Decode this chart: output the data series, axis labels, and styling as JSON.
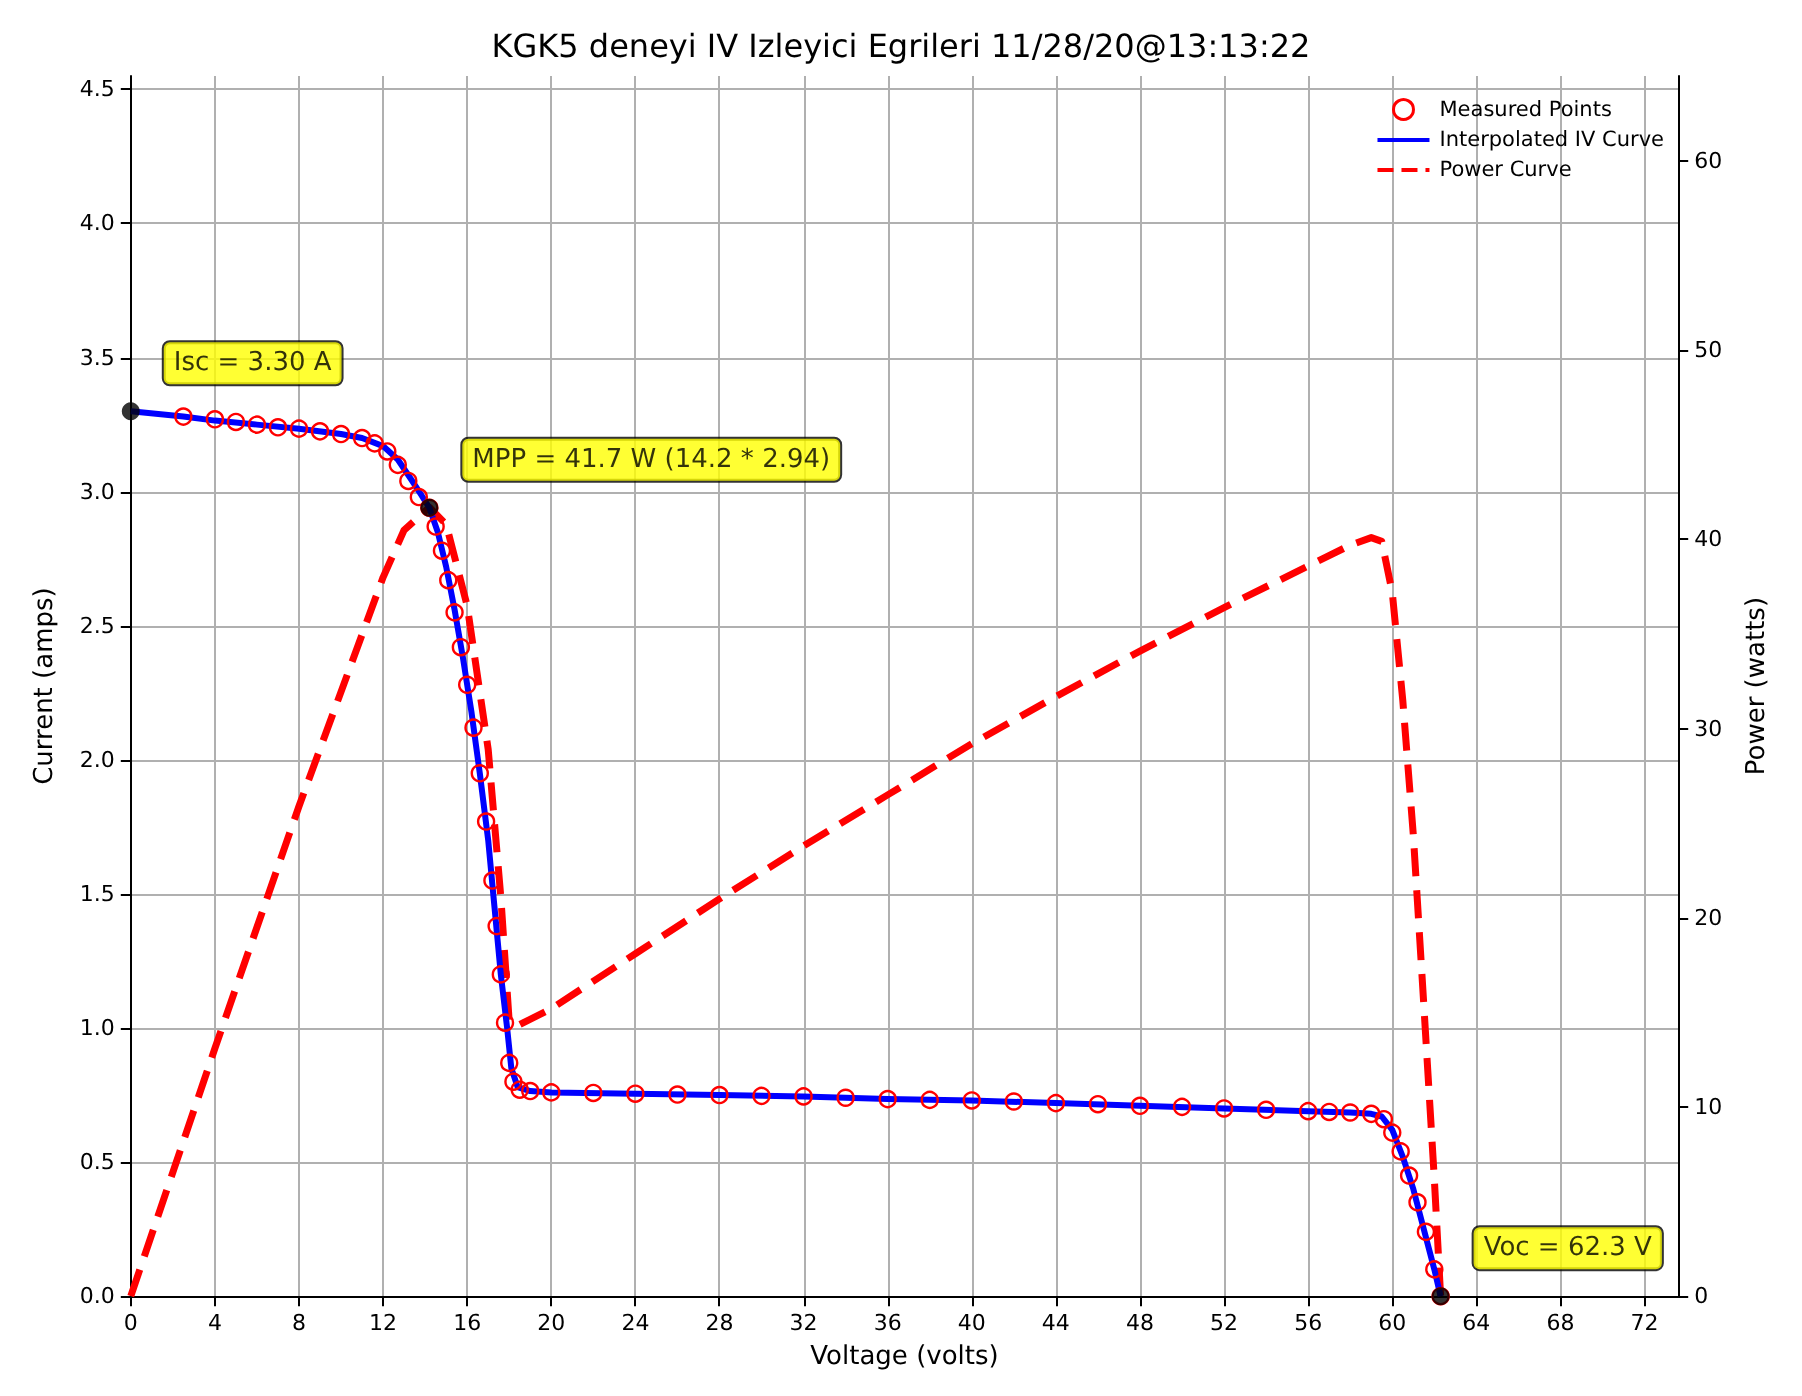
{
  "chart_data": {
    "type": "line",
    "title": "KGK5 deneyi IV Izleyici Egrileri 11/28/20@13:13:22",
    "xlabel": "Voltage (volts)",
    "ylabel": "Current (amps)",
    "y2label": "Power (watts)",
    "xlim": [
      0,
      73.6
    ],
    "xticks": [
      0,
      4,
      8,
      12,
      16,
      20,
      24,
      28,
      32,
      36,
      40,
      44,
      48,
      52,
      56,
      60,
      64,
      68,
      72
    ],
    "ylim": [
      0,
      4.55
    ],
    "yticks": [
      {
        "value": 0,
        "label": "0.0"
      },
      0.5,
      {
        "value": 1,
        "label": "1.0"
      },
      1.5,
      {
        "value": 2,
        "label": "2.0"
      },
      2.5,
      {
        "value": 3,
        "label": "3.0"
      },
      3.5,
      {
        "value": 4,
        "label": "4.0"
      },
      4.5
    ],
    "y2lim": [
      0,
      64.5
    ],
    "y2ticks": [
      0,
      10,
      20,
      30,
      40,
      50,
      60
    ],
    "grid": true,
    "legend": "top right",
    "series": [
      {
        "name": "Measured Points",
        "type": "scatter",
        "marker": "circle",
        "color": "#ff0000",
        "x": [
          2.5,
          4,
          5,
          6,
          7,
          8,
          9,
          10,
          11,
          11.6,
          12.2,
          12.7,
          13.2,
          13.7,
          14.2,
          14.5,
          14.8,
          15.1,
          15.4,
          15.7,
          16,
          16.3,
          16.6,
          16.9,
          17.2,
          17.4,
          17.6,
          17.8,
          18,
          18.2,
          18.5,
          19,
          20,
          22,
          24,
          26,
          28,
          30,
          32,
          34,
          36,
          38,
          40,
          42,
          44,
          46,
          48,
          50,
          52,
          54,
          56,
          57,
          58,
          59,
          59.6,
          60,
          60.4,
          60.8,
          61.2,
          61.6,
          62,
          62.3
        ],
        "values": [
          3.28,
          3.27,
          3.26,
          3.25,
          3.24,
          3.235,
          3.225,
          3.215,
          3.2,
          3.18,
          3.15,
          3.1,
          3.04,
          2.98,
          2.94,
          2.87,
          2.78,
          2.67,
          2.55,
          2.42,
          2.28,
          2.12,
          1.95,
          1.77,
          1.55,
          1.38,
          1.2,
          1.02,
          0.87,
          0.8,
          0.77,
          0.765,
          0.76,
          0.758,
          0.755,
          0.752,
          0.75,
          0.747,
          0.745,
          0.74,
          0.735,
          0.732,
          0.73,
          0.726,
          0.72,
          0.716,
          0.71,
          0.706,
          0.7,
          0.695,
          0.69,
          0.687,
          0.685,
          0.68,
          0.66,
          0.61,
          0.54,
          0.45,
          0.35,
          0.24,
          0.1,
          0
        ]
      },
      {
        "name": "Interpolated IV Curve",
        "marker": "none",
        "color": "#0000ff",
        "x": [
          0,
          2.5,
          4,
          6,
          8,
          10,
          11,
          12,
          12.7,
          13.3,
          13.8,
          14.2,
          14.6,
          15,
          15.4,
          15.8,
          16.2,
          16.6,
          17,
          17.3,
          17.6,
          17.9,
          18.1,
          18.4,
          19,
          20,
          24,
          28,
          32,
          36,
          40,
          44,
          48,
          52,
          56,
          58,
          59,
          59.5,
          60,
          60.5,
          61,
          61.5,
          62,
          62.3
        ],
        "values": [
          3.3,
          3.28,
          3.265,
          3.25,
          3.235,
          3.215,
          3.2,
          3.17,
          3.12,
          3.05,
          2.99,
          2.94,
          2.85,
          2.72,
          2.56,
          2.38,
          2.18,
          1.95,
          1.7,
          1.45,
          1.2,
          1.0,
          0.85,
          0.78,
          0.765,
          0.76,
          0.755,
          0.75,
          0.745,
          0.735,
          0.73,
          0.72,
          0.71,
          0.7,
          0.69,
          0.685,
          0.68,
          0.67,
          0.62,
          0.52,
          0.4,
          0.25,
          0.1,
          0
        ]
      },
      {
        "name": "Power Curve",
        "marker": "none",
        "line_style": "dashed",
        "axis": "y2",
        "color": "#ff0000",
        "x": [
          0,
          4,
          8,
          12,
          13,
          14.2,
          15,
          16,
          17,
          17.6,
          18,
          18.4,
          20,
          24,
          28,
          32,
          36,
          40,
          44,
          48,
          52,
          56,
          58,
          59,
          59.5,
          60,
          60.5,
          61,
          61.5,
          62,
          62.3
        ],
        "values": [
          0,
          13.1,
          25.9,
          38,
          40.5,
          41.7,
          40.8,
          36.5,
          28.9,
          21.1,
          14.5,
          14.3,
          15.2,
          18.1,
          21,
          23.8,
          26.5,
          29.2,
          31.7,
          34.1,
          36.4,
          38.6,
          39.7,
          40.1,
          39.9,
          37.2,
          31.5,
          24.4,
          15.4,
          6.2,
          0
        ]
      }
    ],
    "annotations": [
      {
        "text": "Isc = 3.30 A",
        "x": 0,
        "y": 3.3
      },
      {
        "text": "MPP = 41.7 W (14.2 * 2.94)",
        "x": 14.2,
        "y": 2.94
      },
      {
        "text": "Voc = 62.3 V",
        "x": 62.3,
        "y": 0
      }
    ]
  }
}
